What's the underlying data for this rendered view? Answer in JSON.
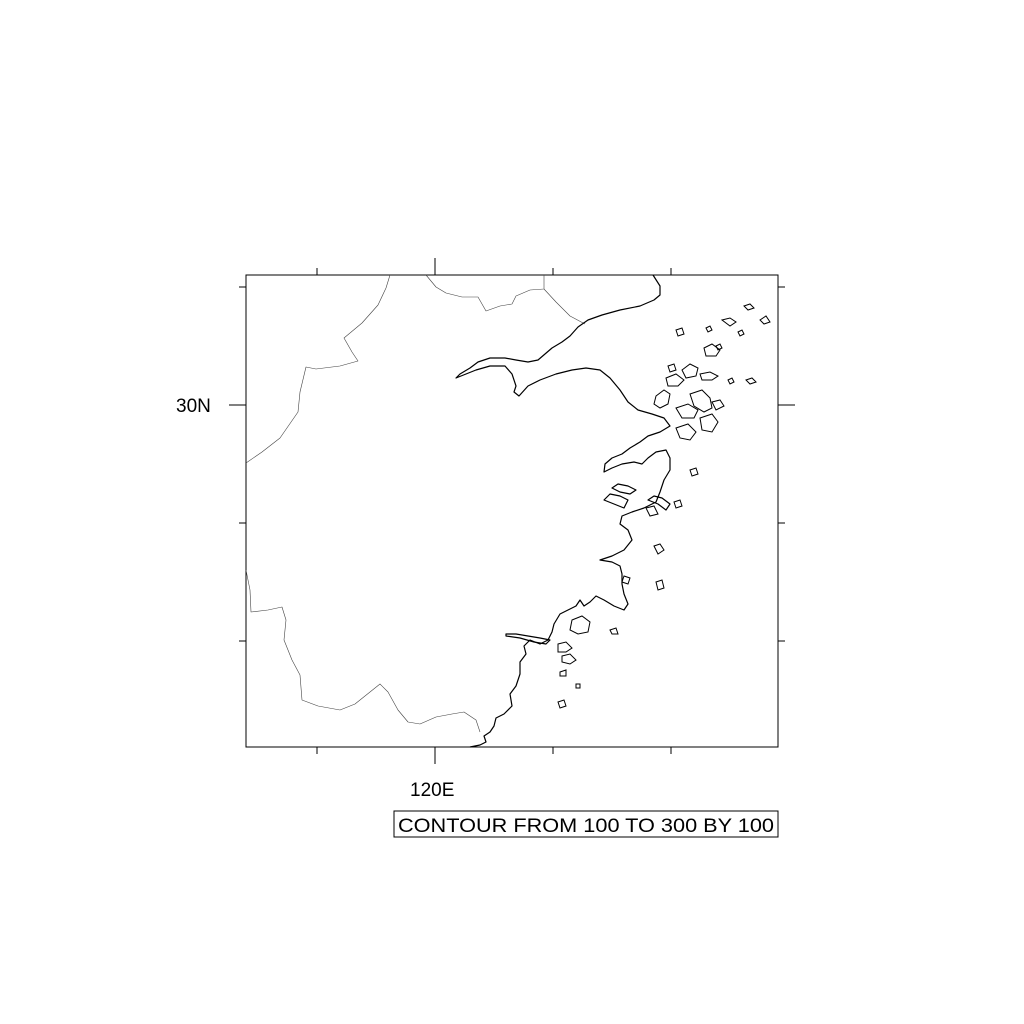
{
  "map": {
    "lat_label": "30N",
    "lon_label": "120E",
    "info_label": "CONTOUR FROM 100 TO 300 BY 100"
  },
  "colors": {
    "frame": "#000000",
    "coastline": "#000000",
    "boundaries": "#444444",
    "background": "#ffffff"
  }
}
